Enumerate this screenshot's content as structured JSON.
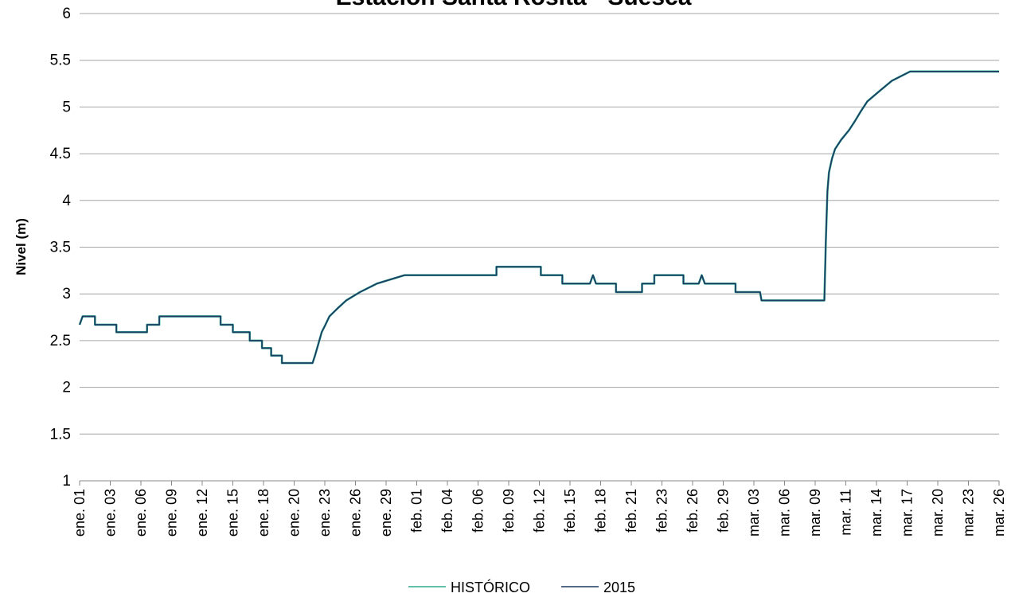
{
  "chart_data": {
    "type": "line",
    "title": "Estación Santa Rosita - Suesca",
    "xlabel": "",
    "ylabel": "Nivel (m)",
    "ylim": [
      1,
      6
    ],
    "yticks": [
      "1",
      "1.5",
      "2",
      "2.5",
      "3",
      "3.5",
      "4",
      "4.5",
      "5",
      "5.5",
      "6"
    ],
    "xticks": [
      "ene. 01",
      "ene. 03",
      "ene. 06",
      "ene. 09",
      "ene. 12",
      "ene. 15",
      "ene. 18",
      "ene. 20",
      "ene. 23",
      "ene. 26",
      "ene. 29",
      "feb. 01",
      "feb. 04",
      "feb. 06",
      "feb. 09",
      "feb. 12",
      "feb. 15",
      "feb. 18",
      "feb. 21",
      "feb. 23",
      "feb. 26",
      "feb. 29",
      "mar. 03",
      "mar. 06",
      "mar. 09",
      "mar. 11",
      "mar. 14",
      "mar. 17",
      "mar. 20",
      "mar. 23",
      "mar. 26"
    ],
    "grid": "horizontal",
    "legend_position": "bottom",
    "series": [
      {
        "name": "HISTÓRICO",
        "color": "#2bab8c",
        "points": [
          [
            0,
            2.67
          ],
          [
            0.1,
            2.76
          ],
          [
            0.5,
            2.76
          ],
          [
            0.5,
            2.67
          ],
          [
            1.2,
            2.67
          ],
          [
            1.2,
            2.59
          ],
          [
            2.2,
            2.59
          ],
          [
            2.2,
            2.67
          ],
          [
            2.6,
            2.67
          ],
          [
            2.6,
            2.76
          ],
          [
            4.6,
            2.76
          ],
          [
            4.6,
            2.67
          ],
          [
            5.0,
            2.67
          ],
          [
            5.0,
            2.59
          ],
          [
            5.55,
            2.59
          ],
          [
            5.55,
            2.5
          ],
          [
            5.95,
            2.5
          ],
          [
            5.95,
            2.42
          ],
          [
            6.25,
            2.42
          ],
          [
            6.25,
            2.34
          ],
          [
            6.6,
            2.34
          ],
          [
            6.6,
            2.26
          ],
          [
            7.6,
            2.26
          ],
          [
            7.68,
            2.34
          ],
          [
            7.75,
            2.42
          ],
          [
            7.82,
            2.5
          ],
          [
            7.9,
            2.59
          ],
          [
            8.02,
            2.67
          ],
          [
            8.15,
            2.76
          ],
          [
            8.4,
            2.84
          ],
          [
            8.7,
            2.93
          ],
          [
            9.15,
            3.02
          ],
          [
            9.7,
            3.11
          ],
          [
            10.6,
            3.2
          ],
          [
            13.6,
            3.2
          ],
          [
            13.6,
            3.29
          ],
          [
            15.05,
            3.29
          ],
          [
            15.05,
            3.2
          ],
          [
            15.75,
            3.2
          ],
          [
            15.75,
            3.11
          ],
          [
            16.65,
            3.11
          ],
          [
            16.75,
            3.2
          ],
          [
            16.85,
            3.11
          ],
          [
            17.5,
            3.11
          ],
          [
            17.5,
            3.02
          ],
          [
            18.35,
            3.02
          ],
          [
            18.35,
            3.11
          ],
          [
            18.75,
            3.11
          ],
          [
            18.75,
            3.2
          ],
          [
            19.7,
            3.2
          ],
          [
            19.7,
            3.11
          ],
          [
            20.2,
            3.11
          ],
          [
            20.3,
            3.2
          ],
          [
            20.4,
            3.11
          ],
          [
            21.4,
            3.11
          ],
          [
            21.4,
            3.02
          ],
          [
            22.2,
            3.02
          ],
          [
            22.25,
            2.93
          ],
          [
            24.3,
            2.93
          ],
          [
            24.35,
            3.6
          ],
          [
            24.4,
            4.1
          ],
          [
            24.45,
            4.3
          ],
          [
            24.55,
            4.45
          ],
          [
            24.65,
            4.55
          ],
          [
            24.85,
            4.65
          ],
          [
            25.1,
            4.75
          ],
          [
            25.3,
            4.85
          ],
          [
            25.5,
            4.96
          ],
          [
            25.7,
            5.06
          ],
          [
            26.1,
            5.17
          ],
          [
            26.5,
            5.28
          ],
          [
            27.1,
            5.38
          ],
          [
            30,
            5.38
          ]
        ]
      },
      {
        "name": "2015",
        "color": "#1f3864",
        "points": [
          [
            0,
            2.67
          ],
          [
            0.1,
            2.76
          ],
          [
            0.5,
            2.76
          ],
          [
            0.5,
            2.67
          ],
          [
            1.2,
            2.67
          ],
          [
            1.2,
            2.59
          ],
          [
            2.2,
            2.59
          ],
          [
            2.2,
            2.67
          ],
          [
            2.6,
            2.67
          ],
          [
            2.6,
            2.76
          ],
          [
            4.6,
            2.76
          ],
          [
            4.6,
            2.67
          ],
          [
            5.0,
            2.67
          ],
          [
            5.0,
            2.59
          ],
          [
            5.55,
            2.59
          ],
          [
            5.55,
            2.5
          ],
          [
            5.95,
            2.5
          ],
          [
            5.95,
            2.42
          ],
          [
            6.25,
            2.42
          ],
          [
            6.25,
            2.34
          ],
          [
            6.6,
            2.34
          ],
          [
            6.6,
            2.26
          ],
          [
            7.6,
            2.26
          ],
          [
            7.68,
            2.34
          ],
          [
            7.75,
            2.42
          ],
          [
            7.82,
            2.5
          ],
          [
            7.9,
            2.59
          ],
          [
            8.02,
            2.67
          ],
          [
            8.15,
            2.76
          ],
          [
            8.4,
            2.84
          ],
          [
            8.7,
            2.93
          ],
          [
            9.15,
            3.02
          ],
          [
            9.7,
            3.11
          ],
          [
            10.6,
            3.2
          ],
          [
            13.6,
            3.2
          ],
          [
            13.6,
            3.29
          ],
          [
            15.05,
            3.29
          ],
          [
            15.05,
            3.2
          ],
          [
            15.75,
            3.2
          ],
          [
            15.75,
            3.11
          ],
          [
            16.65,
            3.11
          ],
          [
            16.75,
            3.2
          ],
          [
            16.85,
            3.11
          ],
          [
            17.5,
            3.11
          ],
          [
            17.5,
            3.02
          ],
          [
            18.35,
            3.02
          ],
          [
            18.35,
            3.11
          ],
          [
            18.75,
            3.11
          ],
          [
            18.75,
            3.2
          ],
          [
            19.7,
            3.2
          ],
          [
            19.7,
            3.11
          ],
          [
            20.2,
            3.11
          ],
          [
            20.3,
            3.2
          ],
          [
            20.4,
            3.11
          ],
          [
            21.4,
            3.11
          ],
          [
            21.4,
            3.02
          ],
          [
            22.2,
            3.02
          ],
          [
            22.25,
            2.93
          ],
          [
            24.3,
            2.93
          ],
          [
            24.35,
            3.6
          ],
          [
            24.4,
            4.1
          ],
          [
            24.45,
            4.3
          ],
          [
            24.55,
            4.45
          ],
          [
            24.65,
            4.55
          ],
          [
            24.85,
            4.65
          ],
          [
            25.1,
            4.75
          ],
          [
            25.3,
            4.85
          ],
          [
            25.5,
            4.96
          ],
          [
            25.7,
            5.06
          ],
          [
            26.1,
            5.17
          ],
          [
            26.5,
            5.28
          ],
          [
            27.1,
            5.38
          ],
          [
            30,
            5.38
          ]
        ]
      }
    ]
  }
}
